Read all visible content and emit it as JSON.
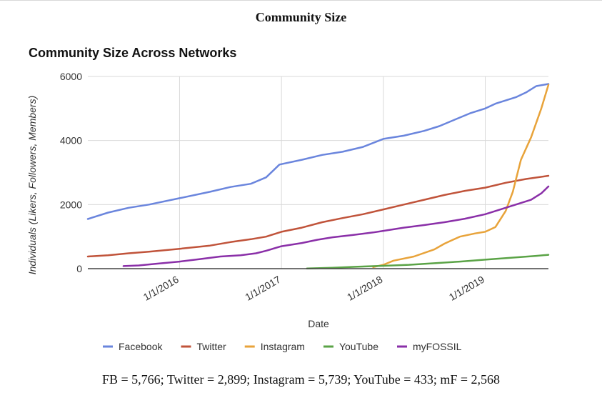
{
  "page": {
    "title": "Community Size",
    "caption": "FB = 5,766; Twitter = 2,899; Instagram = 5,739; YouTube = 433; mF = 2,568"
  },
  "chart_data": {
    "type": "line",
    "title": "Community Size Across Networks",
    "xlabel": "Date",
    "ylabel": "Individuals (Likers, Followers, Members)",
    "ylim": [
      0,
      6000
    ],
    "yticks": [
      0,
      2000,
      4000,
      6000
    ],
    "xlim": [
      2015.1,
      2019.62
    ],
    "xticks": [
      {
        "value": 2016.0,
        "label": "1/1/2016"
      },
      {
        "value": 2017.0,
        "label": "1/1/2017"
      },
      {
        "value": 2018.0,
        "label": "1/1/2018"
      },
      {
        "value": 2019.0,
        "label": "1/1/2019"
      }
    ],
    "grid": true,
    "legend_position": "bottom",
    "series": [
      {
        "name": "Facebook",
        "color": "#6a85dd",
        "x": [
          2015.1,
          2015.3,
          2015.5,
          2015.7,
          2016.0,
          2016.3,
          2016.5,
          2016.7,
          2016.85,
          2016.98,
          2017.2,
          2017.4,
          2017.6,
          2017.8,
          2018.0,
          2018.2,
          2018.4,
          2018.55,
          2018.7,
          2018.85,
          2019.0,
          2019.1,
          2019.2,
          2019.3,
          2019.4,
          2019.5,
          2019.62
        ],
        "y": [
          1550,
          1750,
          1900,
          2000,
          2200,
          2400,
          2550,
          2650,
          2850,
          3250,
          3400,
          3550,
          3650,
          3800,
          4050,
          4150,
          4300,
          4450,
          4650,
          4850,
          5000,
          5150,
          5250,
          5350,
          5500,
          5700,
          5766
        ]
      },
      {
        "name": "Twitter",
        "color": "#c0533a",
        "x": [
          2015.1,
          2015.3,
          2015.5,
          2015.7,
          2016.0,
          2016.3,
          2016.5,
          2016.7,
          2016.85,
          2017.0,
          2017.2,
          2017.4,
          2017.6,
          2017.8,
          2018.0,
          2018.2,
          2018.4,
          2018.6,
          2018.8,
          2019.0,
          2019.2,
          2019.4,
          2019.62
        ],
        "y": [
          380,
          420,
          480,
          530,
          620,
          720,
          830,
          920,
          1000,
          1150,
          1280,
          1450,
          1580,
          1700,
          1850,
          2000,
          2150,
          2300,
          2430,
          2530,
          2680,
          2800,
          2899
        ]
      },
      {
        "name": "Instagram",
        "color": "#e8a33a",
        "x": [
          2017.9,
          2018.0,
          2018.1,
          2018.3,
          2018.5,
          2018.6,
          2018.75,
          2018.9,
          2019.0,
          2019.1,
          2019.2,
          2019.27,
          2019.35,
          2019.45,
          2019.55,
          2019.62
        ],
        "y": [
          50,
          120,
          250,
          380,
          600,
          780,
          1000,
          1100,
          1150,
          1300,
          1800,
          2400,
          3400,
          4100,
          5000,
          5739
        ]
      },
      {
        "name": "YouTube",
        "color": "#5aa346",
        "x": [
          2017.25,
          2017.5,
          2017.75,
          2018.0,
          2018.25,
          2018.5,
          2018.75,
          2019.0,
          2019.25,
          2019.5,
          2019.62
        ],
        "y": [
          5,
          30,
          60,
          90,
          120,
          170,
          220,
          280,
          340,
          400,
          433
        ]
      },
      {
        "name": "myFOSSIL",
        "color": "#8a2fa8",
        "x": [
          2015.45,
          2015.6,
          2015.8,
          2016.0,
          2016.2,
          2016.4,
          2016.6,
          2016.75,
          2016.85,
          2017.0,
          2017.2,
          2017.35,
          2017.5,
          2017.7,
          2017.9,
          2018.0,
          2018.2,
          2018.4,
          2018.6,
          2018.8,
          2019.0,
          2019.15,
          2019.3,
          2019.45,
          2019.55,
          2019.62
        ],
        "y": [
          80,
          100,
          160,
          220,
          300,
          380,
          420,
          480,
          560,
          700,
          800,
          900,
          980,
          1050,
          1130,
          1180,
          1280,
          1360,
          1450,
          1560,
          1700,
          1850,
          2000,
          2150,
          2350,
          2568
        ]
      }
    ]
  }
}
